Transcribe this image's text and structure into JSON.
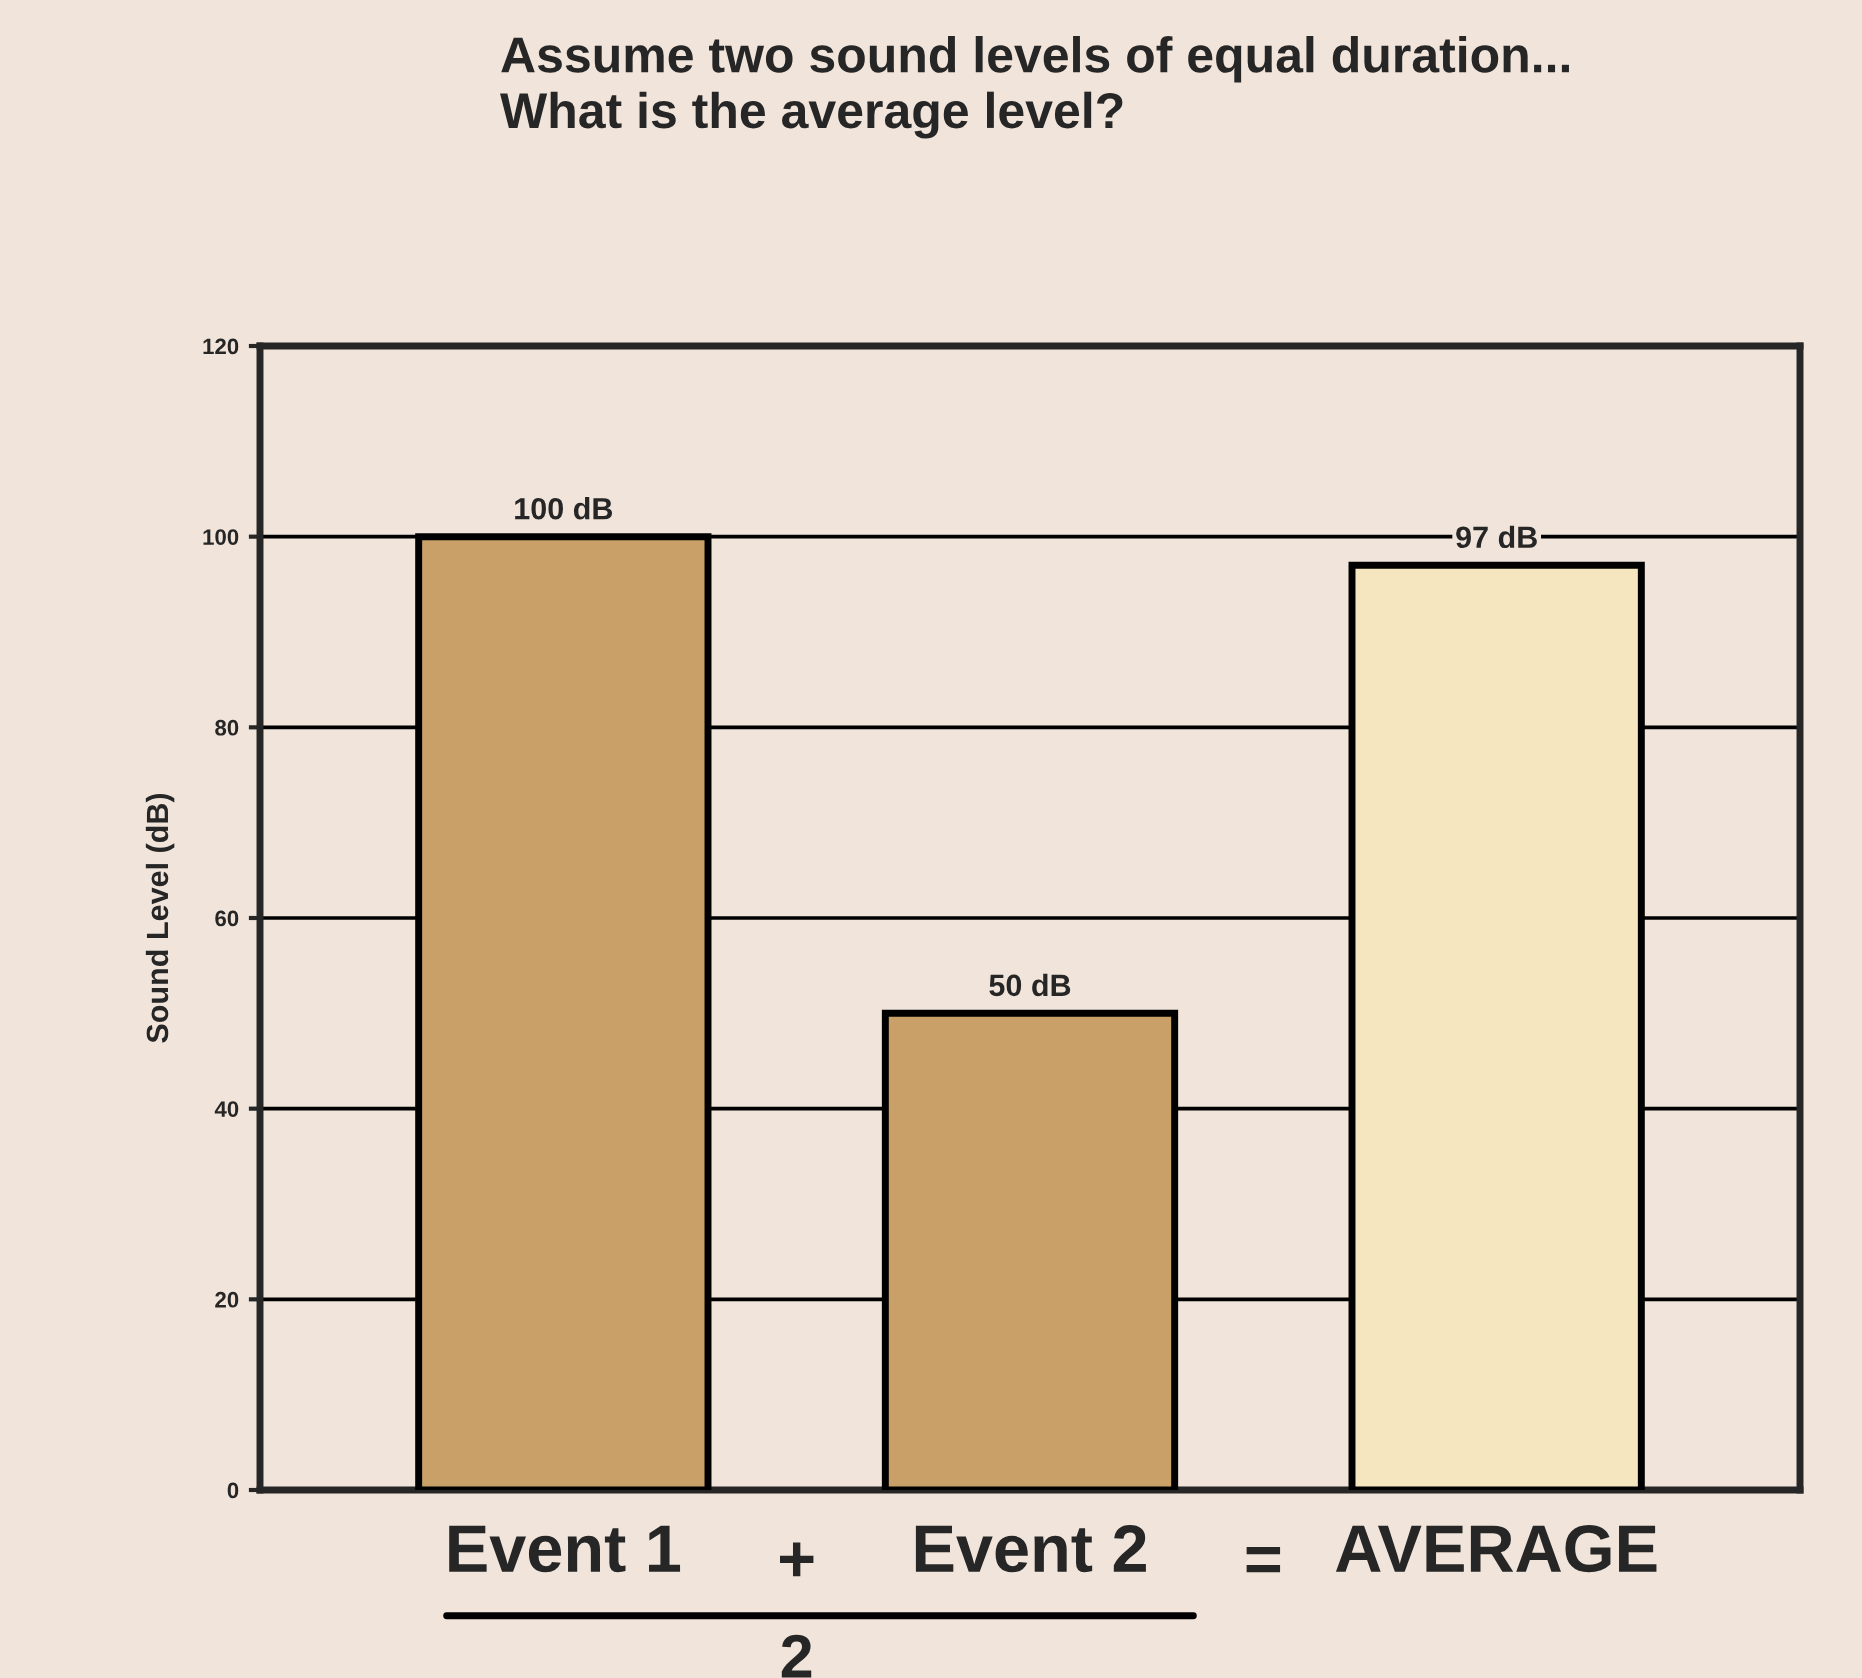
{
  "chart_data": {
    "type": "bar",
    "title": "Assume two sound levels of equal duration...\nWhat is the average level?",
    "ylabel": "Sound Level (dB)",
    "categories": [
      "Event 1",
      "Event 2",
      "AVERAGE"
    ],
    "values": [
      100,
      50,
      97
    ],
    "colors": [
      "#c9a068",
      "#c9a068",
      "#f6e6bf"
    ],
    "value_labels": [
      "100 dB",
      "50 dB",
      "97 dB"
    ],
    "annotations": [
      "+",
      "=",
      "2"
    ],
    "ylim": [
      0,
      120
    ],
    "yticks": [
      0,
      20,
      40,
      60,
      80,
      100,
      120
    ],
    "grid": "y",
    "legend": false
  }
}
